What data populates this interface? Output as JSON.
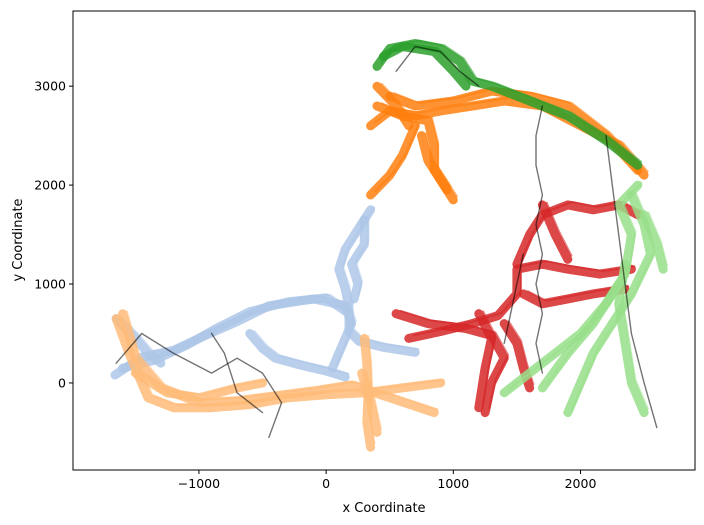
{
  "chart_data": {
    "type": "line",
    "title": "",
    "xlabel": "x Coordinate",
    "ylabel": "y Coordinate",
    "xlim": [
      -1990,
      2900
    ],
    "ylim": [
      -880,
      3760
    ],
    "xticks": [
      -1000,
      0,
      1000,
      2000
    ],
    "xtick_labels": [
      "−1000",
      "0",
      "1000",
      "2000"
    ],
    "yticks": [
      0,
      1000,
      2000,
      3000
    ],
    "ytick_labels": [
      "0",
      "1000",
      "2000",
      "3000"
    ],
    "grid": false,
    "legend": "none",
    "series": [
      {
        "color": "#aec7e8",
        "paths": [
          [
            [
              -1660,
              80
            ],
            [
              -1450,
              260
            ],
            [
              -1200,
              330
            ],
            [
              -950,
              480
            ],
            [
              -700,
              620
            ],
            [
              -450,
              780
            ],
            [
              -100,
              850
            ],
            [
              150,
              780
            ],
            [
              200,
              600
            ],
            [
              150,
              450
            ],
            [
              100,
              300
            ],
            [
              50,
              150
            ]
          ],
          [
            [
              -1600,
              150
            ],
            [
              -1350,
              230
            ],
            [
              -1100,
              380
            ],
            [
              -850,
              560
            ],
            [
              -600,
              720
            ],
            [
              -300,
              820
            ],
            [
              0,
              860
            ],
            [
              180,
              700
            ],
            [
              180,
              520
            ],
            [
              260,
              420
            ],
            [
              450,
              360
            ],
            [
              700,
              310
            ]
          ],
          [
            [
              180,
              760
            ],
            [
              150,
              950
            ],
            [
              100,
              1150
            ],
            [
              150,
              1350
            ],
            [
              250,
              1550
            ],
            [
              350,
              1750
            ]
          ],
          [
            [
              220,
              850
            ],
            [
              250,
              1000
            ],
            [
              200,
              1200
            ],
            [
              300,
              1400
            ],
            [
              300,
              1650
            ]
          ],
          [
            [
              -600,
              500
            ],
            [
              -500,
              350
            ],
            [
              -400,
              250
            ],
            [
              -200,
              180
            ],
            [
              0,
              120
            ],
            [
              150,
              60
            ]
          ],
          [
            [
              -1650,
              650
            ],
            [
              -1500,
              450
            ],
            [
              -1400,
              300
            ],
            [
              -1300,
              200
            ]
          ]
        ]
      },
      {
        "color": "#ffbb78",
        "paths": [
          [
            [
              -1650,
              650
            ],
            [
              -1550,
              300
            ],
            [
              -1400,
              -150
            ],
            [
              -1200,
              -250
            ],
            [
              -900,
              -250
            ],
            [
              -600,
              -220
            ],
            [
              -300,
              -150
            ],
            [
              0,
              -120
            ],
            [
              300,
              -100
            ],
            [
              600,
              -50
            ],
            [
              900,
              0
            ]
          ],
          [
            [
              -1600,
              700
            ],
            [
              -1500,
              250
            ],
            [
              -1300,
              -50
            ],
            [
              -1000,
              -200
            ],
            [
              -700,
              -180
            ],
            [
              -400,
              -130
            ],
            [
              -100,
              -80
            ],
            [
              200,
              -20
            ],
            [
              500,
              -150
            ],
            [
              850,
              -300
            ]
          ],
          [
            [
              300,
              450
            ],
            [
              320,
              200
            ],
            [
              330,
              -100
            ],
            [
              320,
              -400
            ],
            [
              350,
              -650
            ]
          ],
          [
            [
              280,
              100
            ],
            [
              350,
              -200
            ],
            [
              400,
              -500
            ]
          ],
          [
            [
              -1500,
              100
            ],
            [
              -1250,
              -100
            ],
            [
              -1000,
              -150
            ],
            [
              -700,
              -50
            ],
            [
              -500,
              0
            ]
          ]
        ]
      },
      {
        "color": "#ff7f0e",
        "paths": [
          [
            [
              350,
              2600
            ],
            [
              500,
              2750
            ],
            [
              700,
              2700
            ],
            [
              900,
              2750
            ],
            [
              1150,
              2800
            ],
            [
              1400,
              2850
            ],
            [
              1700,
              2800
            ],
            [
              2000,
              2600
            ],
            [
              2300,
              2400
            ],
            [
              2500,
              2100
            ]
          ],
          [
            [
              400,
              2800
            ],
            [
              600,
              2700
            ],
            [
              800,
              2650
            ],
            [
              850,
              2400
            ],
            [
              850,
              2150
            ],
            [
              950,
              1950
            ]
          ],
          [
            [
              700,
              2600
            ],
            [
              600,
              2300
            ],
            [
              500,
              2100
            ],
            [
              350,
              1900
            ]
          ],
          [
            [
              750,
              2500
            ],
            [
              800,
              2250
            ],
            [
              900,
              2050
            ],
            [
              1000,
              1850
            ]
          ],
          [
            [
              500,
              2900
            ],
            [
              700,
              2800
            ],
            [
              1000,
              2850
            ],
            [
              1300,
              2950
            ],
            [
              1600,
              2900
            ],
            [
              1900,
              2800
            ],
            [
              2200,
              2500
            ],
            [
              2450,
              2150
            ]
          ],
          [
            [
              400,
              3000
            ],
            [
              550,
              2800
            ],
            [
              650,
              2600
            ]
          ]
        ]
      },
      {
        "color": "#2ca02c",
        "paths": [
          [
            [
              400,
              3200
            ],
            [
              500,
              3380
            ],
            [
              700,
              3430
            ],
            [
              900,
              3380
            ],
            [
              1050,
              3250
            ],
            [
              1150,
              3050
            ],
            [
              1300,
              3000
            ],
            [
              1600,
              2850
            ],
            [
              1900,
              2700
            ],
            [
              2200,
              2450
            ],
            [
              2450,
              2200
            ]
          ],
          [
            [
              450,
              3300
            ],
            [
              600,
              3400
            ],
            [
              850,
              3350
            ],
            [
              1000,
              3150
            ],
            [
              1100,
              3000
            ]
          ]
        ]
      },
      {
        "color": "#d62728",
        "paths": [
          [
            [
              550,
              700
            ],
            [
              800,
              600
            ],
            [
              1100,
              550
            ],
            [
              1300,
              480
            ],
            [
              1400,
              250
            ],
            [
              1300,
              0
            ],
            [
              1250,
              -300
            ]
          ],
          [
            [
              650,
              450
            ],
            [
              900,
              520
            ],
            [
              1150,
              600
            ],
            [
              1350,
              680
            ],
            [
              1500,
              900
            ],
            [
              1500,
              1150
            ],
            [
              1700,
              1200
            ],
            [
              1900,
              1150
            ],
            [
              2150,
              1100
            ],
            [
              2400,
              1150
            ]
          ],
          [
            [
              1500,
              1200
            ],
            [
              1600,
              1500
            ],
            [
              1700,
              1700
            ],
            [
              1900,
              1800
            ],
            [
              2100,
              1750
            ],
            [
              2300,
              1800
            ],
            [
              2450,
              1700
            ]
          ],
          [
            [
              1550,
              900
            ],
            [
              1700,
              800
            ],
            [
              1900,
              850
            ],
            [
              2100,
              900
            ],
            [
              2350,
              950
            ]
          ],
          [
            [
              1400,
              600
            ],
            [
              1500,
              400
            ],
            [
              1550,
              150
            ],
            [
              1600,
              -50
            ]
          ],
          [
            [
              1200,
              700
            ],
            [
              1300,
              450
            ],
            [
              1250,
              150
            ],
            [
              1200,
              -250
            ]
          ],
          [
            [
              1700,
              1800
            ],
            [
              1800,
              1500
            ],
            [
              1900,
              1250
            ]
          ]
        ]
      },
      {
        "color": "#98df8a",
        "paths": [
          [
            [
              2450,
              2000
            ],
            [
              2300,
              1800
            ],
            [
              2400,
              1500
            ],
            [
              2350,
              1100
            ],
            [
              2200,
              800
            ],
            [
              2000,
              500
            ],
            [
              1800,
              300
            ],
            [
              1600,
              100
            ],
            [
              1400,
              -100
            ]
          ],
          [
            [
              2400,
              1900
            ],
            [
              2500,
              1600
            ],
            [
              2550,
              1300
            ],
            [
              2400,
              900
            ],
            [
              2250,
              600
            ],
            [
              2100,
              300
            ],
            [
              2000,
              0
            ],
            [
              1900,
              -300
            ]
          ],
          [
            [
              2500,
              1700
            ],
            [
              2600,
              1400
            ],
            [
              2650,
              1150
            ]
          ],
          [
            [
              2350,
              1200
            ],
            [
              2300,
              800
            ],
            [
              2350,
              400
            ],
            [
              2400,
              0
            ],
            [
              2500,
              -300
            ]
          ],
          [
            [
              2300,
              1000
            ],
            [
              2100,
              600
            ],
            [
              1900,
              300
            ],
            [
              1700,
              -50
            ]
          ]
        ]
      },
      {
        "color": "#000000",
        "paths": [
          [
            [
              1700,
              2800
            ],
            [
              1650,
              2500
            ],
            [
              1650,
              2200
            ],
            [
              1700,
              1900
            ],
            [
              1650,
              1600
            ],
            [
              1700,
              1300
            ],
            [
              1650,
              1000
            ],
            [
              1700,
              700
            ],
            [
              1650,
              400
            ],
            [
              1700,
              100
            ]
          ],
          [
            [
              2200,
              2500
            ],
            [
              2250,
              2000
            ],
            [
              2300,
              1500
            ],
            [
              2350,
              1000
            ],
            [
              2400,
              500
            ],
            [
              2500,
              0
            ],
            [
              2600,
              -450
            ]
          ],
          [
            [
              -1650,
              200
            ],
            [
              -1450,
              500
            ],
            [
              -1200,
              300
            ],
            [
              -900,
              100
            ],
            [
              -700,
              250
            ],
            [
              -500,
              100
            ],
            [
              -350,
              -200
            ],
            [
              -450,
              -550
            ]
          ],
          [
            [
              -900,
              500
            ],
            [
              -800,
              300
            ],
            [
              -700,
              -100
            ],
            [
              -500,
              -300
            ]
          ],
          [
            [
              550,
              3150
            ],
            [
              700,
              3400
            ],
            [
              900,
              3350
            ],
            [
              1050,
              3150
            ],
            [
              1200,
              3000
            ]
          ],
          [
            [
              1550,
              1300
            ],
            [
              1500,
              1000
            ],
            [
              1450,
              700
            ],
            [
              1400,
              400
            ]
          ]
        ]
      }
    ]
  }
}
